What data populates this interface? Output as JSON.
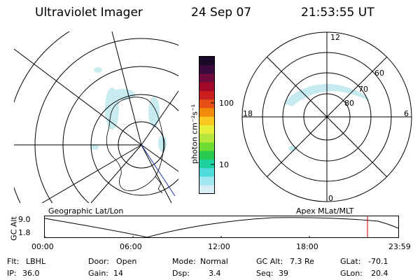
{
  "header": {
    "instrument": "Ultraviolet Imager",
    "date": "24 Sep 07",
    "time": "21:53:55 UT"
  },
  "colorbar": {
    "unit_label": "photon cm⁻²s⁻¹",
    "ticks": [
      "100",
      "10"
    ],
    "colors": [
      "#1a0a28",
      "#3c0a3c",
      "#6e0a3c",
      "#a00a28",
      "#c81e1e",
      "#e65014",
      "#f08c0a",
      "#fac81e",
      "#e6f03c",
      "#b4e63c",
      "#6edc32",
      "#28c850",
      "#1ed2a0",
      "#50dcdc",
      "#a0e6ee",
      "#d8eef4"
    ]
  },
  "left_panel": {
    "label": "Geographic Lat/Lon"
  },
  "right_panel": {
    "label": "Apex MLat/MLT",
    "mlt_labels": {
      "top": "12",
      "bottom": "0",
      "left": "18",
      "right": "6"
    },
    "lat_labels": [
      "60",
      "70",
      "80"
    ]
  },
  "timeline": {
    "ylabel": "GC Alt",
    "ytick_top": "9.0",
    "ytick_bottom": "1.8",
    "xticks": [
      "00:00",
      "06:00",
      "12:00",
      "18:00",
      "23:59"
    ],
    "marker_color": "#cc2222"
  },
  "info": {
    "flt_label": "Flt:",
    "flt_value": "LBHL",
    "ip_label": "IP:",
    "ip_value": "36.0",
    "door_label": "Door:",
    "door_value": "Open",
    "gain_label": "Gain:",
    "gain_value": "14",
    "mode_label": "Mode:",
    "mode_value": "Normal",
    "dsp_label": "Dsp:",
    "dsp_value": "3.4",
    "gcalt_label": "GC Alt:",
    "gcalt_value": "7.3 Re",
    "seq_label": "Seq:",
    "seq_value": "39",
    "glat_label": "GLat:",
    "glat_value": "-70.1",
    "glon_label": "GLon:",
    "glon_value": "20.4"
  }
}
